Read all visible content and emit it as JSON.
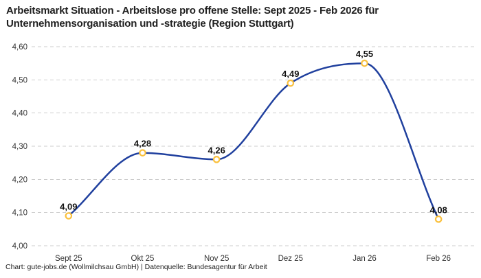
{
  "header": {
    "title_line1": "Arbeitsmarkt Situation - Arbeitslose pro offene Stelle: Sept 2025 - Feb 2026 für",
    "title_line2": "Unternehmensorganisation und -strategie (Region Stuttgart)"
  },
  "footer": {
    "credit": "Chart: gute-jobs.de (Wollmilchsau GmbH) | Datenquelle: Bundesagentur für Arbeit"
  },
  "chart_data": {
    "type": "line",
    "title": "Arbeitsmarkt Situation - Arbeitslose pro offene Stelle: Sept 2025 - Feb 2026 für Unternehmensorganisation und -strategie (Region Stuttgart)",
    "categories": [
      "Sept 25",
      "Okt 25",
      "Nov 25",
      "Dez 25",
      "Jan 26",
      "Feb 26"
    ],
    "values": [
      4.09,
      4.28,
      4.26,
      4.49,
      4.55,
      4.08
    ],
    "value_labels": [
      "4,09",
      "4,28",
      "4,26",
      "4,49",
      "4,55",
      "4,08"
    ],
    "xlabel": "",
    "ylabel": "",
    "ylim": [
      4.0,
      4.6
    ],
    "yticks": [
      4.0,
      4.1,
      4.2,
      4.3,
      4.4,
      4.5,
      4.6
    ],
    "ytick_labels": [
      "4,00",
      "4,10",
      "4,20",
      "4,30",
      "4,40",
      "4,50",
      "4,60"
    ],
    "grid": "horizontal-dashed",
    "legend_position": "none",
    "curve": "monotone",
    "colors": {
      "line": "#20409e",
      "marker_ring": "#fac03c",
      "marker_fill": "#ffffff",
      "grid": "#cccccc",
      "tick_text": "#333333",
      "data_label": "#111111"
    }
  }
}
